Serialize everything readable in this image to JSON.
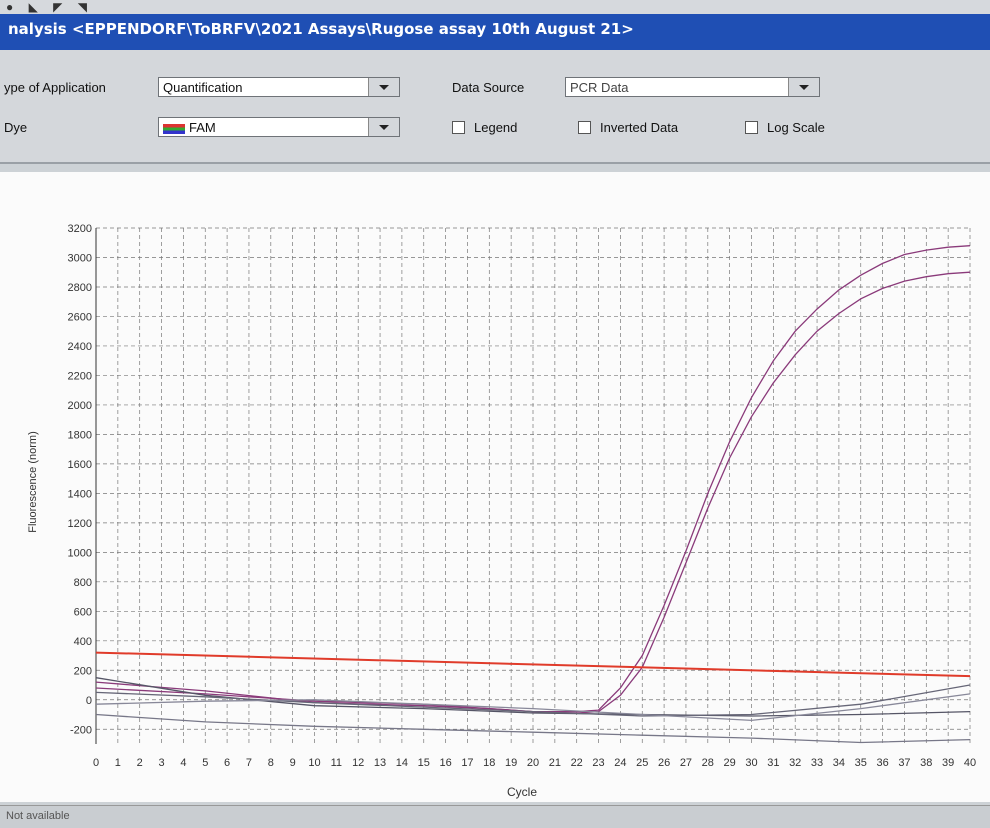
{
  "window": {
    "title": "nalysis <EPPENDORF\\ToBRFV\\2021 Assays\\Rugose assay 10th August 21>"
  },
  "toolbar": {
    "app_type_label": "ype of Application",
    "app_type_value": "Quantification",
    "data_source_label": "Data Source",
    "data_source_value": "PCR Data",
    "dye_label": "Dye",
    "dye_value": "FAM",
    "legend_label": "Legend",
    "legend_checked": false,
    "inverted_label": "Inverted Data",
    "inverted_checked": false,
    "logscale_label": "Log Scale",
    "logscale_checked": false
  },
  "status": {
    "text": "Not available"
  },
  "colors": {
    "titlebar": "#1f4fb4",
    "threshold": "#e03b2a",
    "series": "#8a3a7a"
  },
  "chart_data": {
    "type": "line",
    "xlabel": "Cycle",
    "ylabel": "Fluorescence (norm)",
    "xlim": [
      0,
      40
    ],
    "ylim": [
      -300,
      3200
    ],
    "yticks": [
      -200,
      0,
      200,
      400,
      600,
      800,
      1000,
      1200,
      1400,
      1600,
      1800,
      2000,
      2200,
      2400,
      2600,
      2800,
      3000,
      3200
    ],
    "xticks": [
      0,
      1,
      2,
      3,
      4,
      5,
      6,
      7,
      8,
      9,
      10,
      11,
      12,
      13,
      14,
      15,
      16,
      17,
      18,
      19,
      20,
      21,
      22,
      23,
      24,
      25,
      26,
      27,
      28,
      29,
      30,
      31,
      32,
      33,
      34,
      35,
      36,
      37,
      38,
      39,
      40
    ],
    "grid": true,
    "threshold": {
      "x": [
        0,
        40
      ],
      "y": [
        320,
        160
      ],
      "color": "#e03b2a"
    },
    "series": [
      {
        "color": "#8a3a7a",
        "x": [
          0,
          5,
          10,
          15,
          18,
          20,
          22,
          23,
          24,
          25,
          26,
          27,
          28,
          29,
          30,
          31,
          32,
          33,
          34,
          35,
          36,
          37,
          38,
          39,
          40
        ],
        "y": [
          120,
          60,
          -20,
          -40,
          -60,
          -80,
          -80,
          -70,
          80,
          300,
          640,
          1010,
          1400,
          1750,
          2050,
          2300,
          2500,
          2650,
          2780,
          2880,
          2960,
          3020,
          3050,
          3070,
          3080
        ]
      },
      {
        "color": "#8a3a7a",
        "x": [
          0,
          5,
          10,
          15,
          18,
          20,
          22,
          23,
          24,
          25,
          26,
          27,
          28,
          29,
          30,
          31,
          32,
          33,
          34,
          35,
          36,
          37,
          38,
          39,
          40
        ],
        "y": [
          80,
          40,
          -10,
          -30,
          -60,
          -80,
          -90,
          -80,
          30,
          220,
          560,
          930,
          1300,
          1640,
          1920,
          2150,
          2340,
          2500,
          2620,
          2720,
          2790,
          2840,
          2870,
          2890,
          2900
        ]
      },
      {
        "color": "#555566",
        "x": [
          0,
          5,
          10,
          15,
          20,
          25,
          30,
          35,
          40
        ],
        "y": [
          150,
          30,
          -40,
          -60,
          -90,
          -100,
          -110,
          -100,
          -80
        ]
      },
      {
        "color": "#777788",
        "x": [
          0,
          5,
          10,
          15,
          20,
          25,
          30,
          35,
          40
        ],
        "y": [
          -100,
          -150,
          -180,
          -200,
          -220,
          -240,
          -260,
          -290,
          -270
        ]
      },
      {
        "color": "#666677",
        "x": [
          0,
          5,
          10,
          15,
          20,
          25,
          30,
          35,
          40
        ],
        "y": [
          50,
          20,
          -20,
          -50,
          -80,
          -110,
          -100,
          -30,
          100
        ]
      },
      {
        "color": "#888899",
        "x": [
          0,
          5,
          10,
          15,
          20,
          25,
          30,
          35,
          40
        ],
        "y": [
          -30,
          -10,
          0,
          -30,
          -60,
          -100,
          -140,
          -60,
          40
        ]
      }
    ]
  }
}
